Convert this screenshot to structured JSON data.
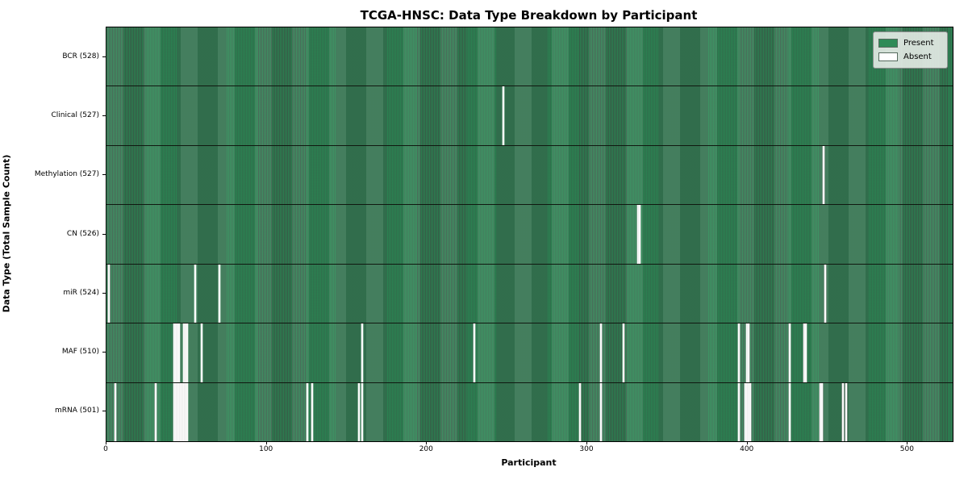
{
  "chart_data": {
    "type": "heatmap",
    "title": "TCGA-HNSC: Data Type Breakdown by Participant",
    "xlabel": "Participant",
    "ylabel": "Data Type (Total Sample Count)",
    "x_ticks": [
      0,
      100,
      200,
      300,
      400,
      500
    ],
    "xlim": [
      0,
      528
    ],
    "n_participants": 528,
    "grid": false,
    "legend_position": "upper right",
    "legend": [
      {
        "label": "Present",
        "color": "#2e8b57"
      },
      {
        "label": "Absent",
        "color": "#ffffff"
      }
    ],
    "rows": [
      {
        "label": "BCR (528)",
        "data_type": "BCR",
        "present_count": 528,
        "absent_participants": []
      },
      {
        "label": "Clinical (527)",
        "data_type": "Clinical",
        "present_count": 527,
        "absent_participants": [
          247
        ]
      },
      {
        "label": "Methylation (527)",
        "data_type": "Methylation",
        "present_count": 527,
        "absent_participants": [
          447
        ]
      },
      {
        "label": "CN (526)",
        "data_type": "CN",
        "present_count": 526,
        "absent_participants": [
          331,
          332
        ]
      },
      {
        "label": "miR (524)",
        "data_type": "miR",
        "present_count": 524,
        "absent_participants": [
          1,
          55,
          70,
          448
        ]
      },
      {
        "label": "MAF (510)",
        "data_type": "MAF",
        "present_count": 510,
        "absent_participants": [
          42,
          43,
          44,
          45,
          48,
          49,
          50,
          59,
          159,
          229,
          308,
          322,
          394,
          399,
          400,
          426,
          435,
          436
        ]
      },
      {
        "label": "mRNA (501)",
        "data_type": "mRNA",
        "present_count": 501,
        "absent_participants": [
          5,
          30,
          42,
          43,
          44,
          45,
          46,
          47,
          48,
          49,
          50,
          125,
          128,
          157,
          159,
          295,
          308,
          394,
          398,
          399,
          400,
          401,
          426,
          445,
          446,
          459,
          461
        ]
      }
    ]
  }
}
